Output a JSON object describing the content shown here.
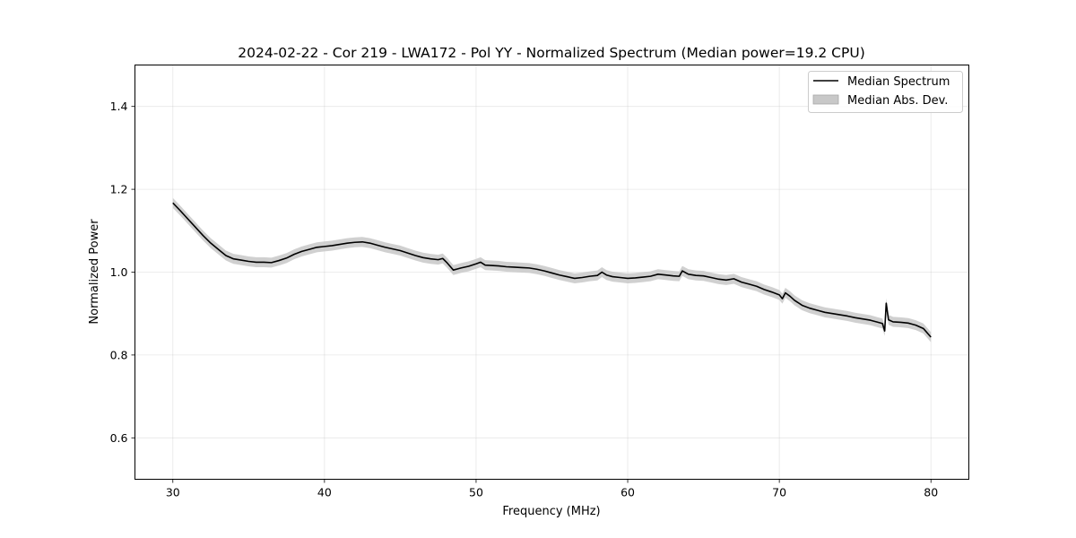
{
  "chart_data": {
    "type": "line",
    "title": "2024-02-22 - Cor 219 - LWA172 - Pol YY - Normalized Spectrum (Median power=19.2 CPU)",
    "xlabel": "Frequency (MHz)",
    "ylabel": "Normalized Power",
    "xlim": [
      27.5,
      82.5
    ],
    "ylim": [
      0.5,
      1.5
    ],
    "xticks": [
      30,
      40,
      50,
      60,
      70,
      80
    ],
    "xtick_labels": [
      "30",
      "40",
      "50",
      "60",
      "70",
      "80"
    ],
    "yticks": [
      0.6,
      0.8,
      1.0,
      1.2,
      1.4
    ],
    "ytick_labels": [
      "0.6",
      "0.8",
      "1.0",
      "1.2",
      "1.4"
    ],
    "grid": true,
    "legend": {
      "position": "top-right",
      "entries": [
        {
          "label": "Median Spectrum",
          "kind": "line",
          "color": "#000000"
        },
        {
          "label": "Median Abs. Dev.",
          "kind": "band",
          "color": "#c8c8c8"
        }
      ]
    },
    "series": [
      {
        "name": "Median Spectrum",
        "mad_band_halfwidth": 0.012,
        "x": [
          30.0,
          30.5,
          31.0,
          31.5,
          32.0,
          32.5,
          33.0,
          33.5,
          34.0,
          34.5,
          35.0,
          35.5,
          36.0,
          36.5,
          37.0,
          37.5,
          38.0,
          38.5,
          39.0,
          39.5,
          40.0,
          40.5,
          41.0,
          41.5,
          42.0,
          42.5,
          43.0,
          43.5,
          44.0,
          44.5,
          45.0,
          45.5,
          46.0,
          46.5,
          47.0,
          47.5,
          47.8,
          48.1,
          48.5,
          49.0,
          49.5,
          50.0,
          50.3,
          50.6,
          51.0,
          51.5,
          52.0,
          52.5,
          53.0,
          53.5,
          54.0,
          54.5,
          55.0,
          55.5,
          56.0,
          56.5,
          57.0,
          57.5,
          58.0,
          58.3,
          58.6,
          59.0,
          59.5,
          60.0,
          60.5,
          61.0,
          61.5,
          62.0,
          62.5,
          63.0,
          63.4,
          63.6,
          64.0,
          64.5,
          65.0,
          65.5,
          66.0,
          66.5,
          67.0,
          67.5,
          68.0,
          68.5,
          69.0,
          69.5,
          70.0,
          70.2,
          70.4,
          70.7,
          71.0,
          71.5,
          72.0,
          72.5,
          73.0,
          73.5,
          74.0,
          74.5,
          75.0,
          75.5,
          76.0,
          76.5,
          76.8,
          76.95,
          77.05,
          77.2,
          77.5,
          78.0,
          78.5,
          79.0,
          79.5,
          80.0
        ],
        "values": [
          1.167,
          1.148,
          1.128,
          1.108,
          1.088,
          1.07,
          1.055,
          1.04,
          1.032,
          1.029,
          1.026,
          1.024,
          1.024,
          1.023,
          1.028,
          1.034,
          1.043,
          1.05,
          1.055,
          1.06,
          1.062,
          1.064,
          1.067,
          1.07,
          1.072,
          1.073,
          1.07,
          1.065,
          1.06,
          1.056,
          1.052,
          1.046,
          1.04,
          1.035,
          1.032,
          1.03,
          1.033,
          1.022,
          1.005,
          1.01,
          1.014,
          1.02,
          1.024,
          1.017,
          1.016,
          1.015,
          1.013,
          1.012,
          1.011,
          1.01,
          1.007,
          1.003,
          0.998,
          0.993,
          0.989,
          0.985,
          0.987,
          0.99,
          0.992,
          1.0,
          0.993,
          0.989,
          0.987,
          0.985,
          0.986,
          0.988,
          0.99,
          0.995,
          0.993,
          0.991,
          0.99,
          1.003,
          0.995,
          0.992,
          0.991,
          0.987,
          0.983,
          0.981,
          0.984,
          0.976,
          0.971,
          0.966,
          0.958,
          0.952,
          0.945,
          0.936,
          0.95,
          0.942,
          0.932,
          0.92,
          0.913,
          0.908,
          0.903,
          0.9,
          0.897,
          0.894,
          0.89,
          0.887,
          0.884,
          0.879,
          0.876,
          0.858,
          0.925,
          0.885,
          0.88,
          0.879,
          0.877,
          0.872,
          0.864,
          0.843
        ]
      }
    ]
  }
}
